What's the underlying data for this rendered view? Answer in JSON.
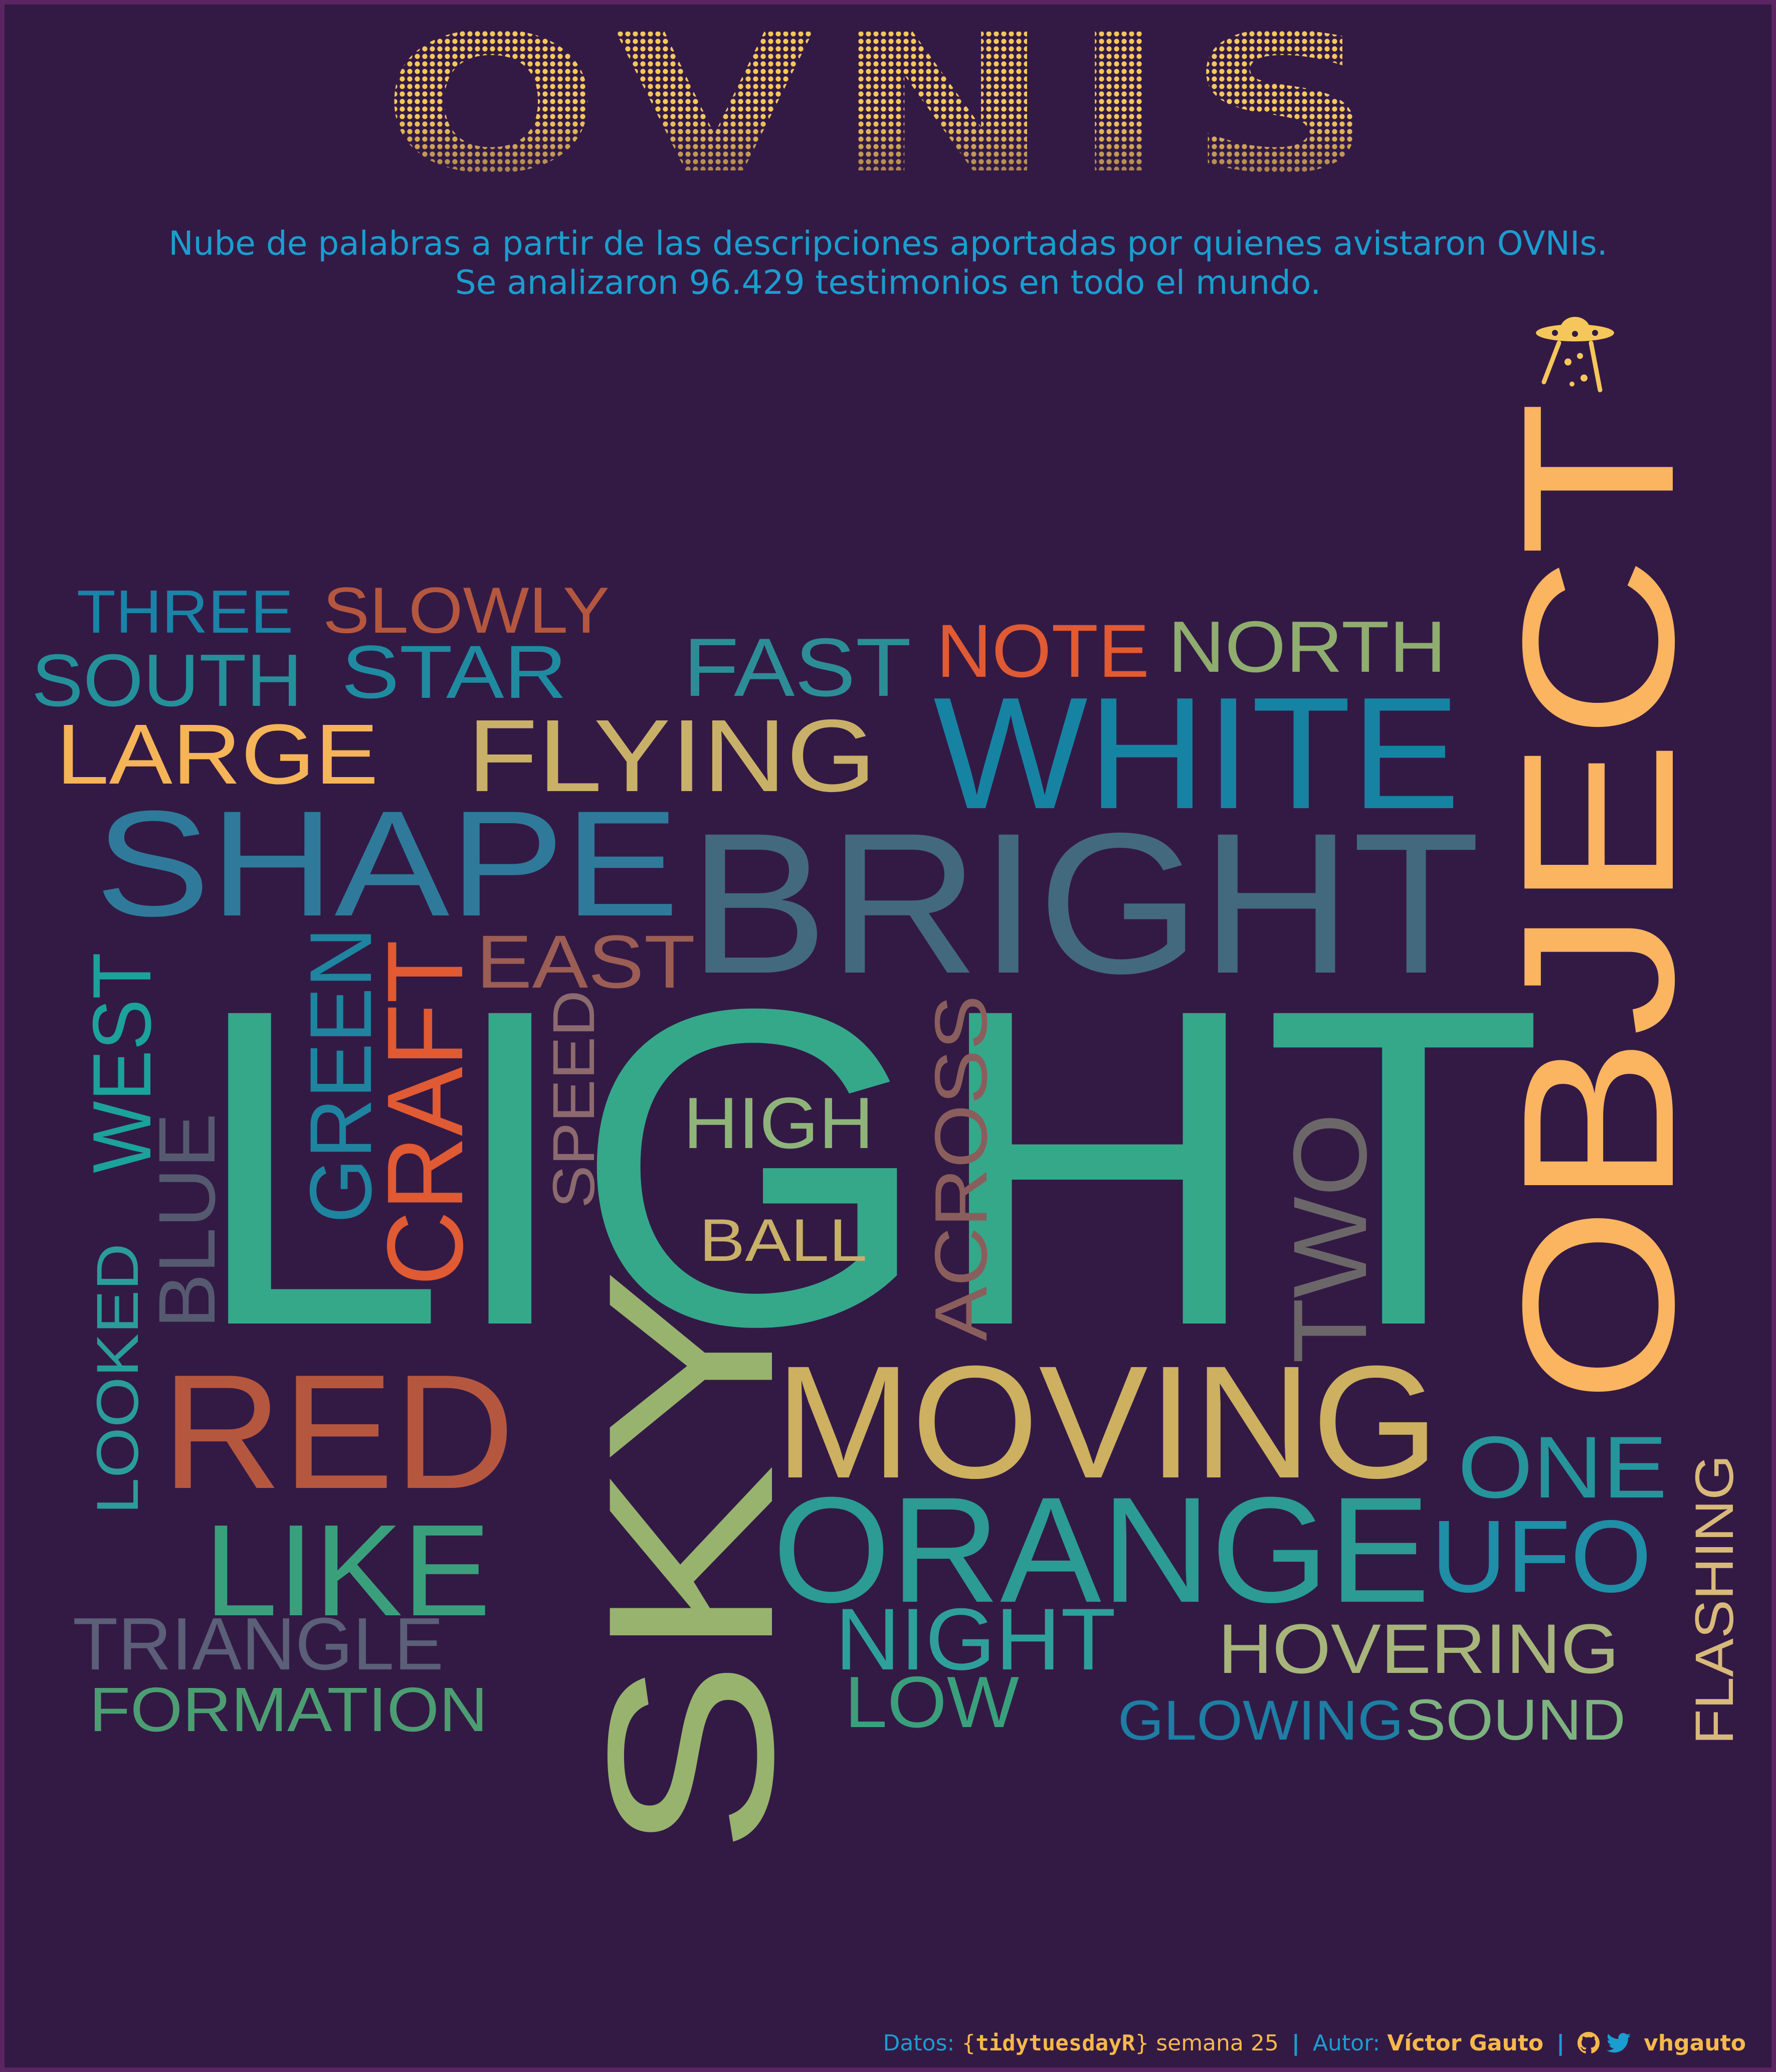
{
  "title": "OVNIS",
  "subtitle": {
    "line1": "Nube de palabras a partir de las descripciones aportadas por quienes avistaron OVNIs.",
    "line2": "Se analizaron 96.429 testimonios en todo el mundo."
  },
  "icons": {
    "ufo": "ufo-icon",
    "github": "github-icon",
    "twitter": "twitter-icon"
  },
  "colors": {
    "background": "#331a45",
    "accent_yellow": "#f5b94a",
    "accent_blue": "#1a9ed0"
  },
  "words": [
    "LIGHT",
    "OBJECT",
    "SKY",
    "BRIGHT",
    "WHITE",
    "SHAPE",
    "MOVING",
    "ORANGE",
    "RED",
    "LIKE",
    "FLYING",
    "CRAFT",
    "GREEN",
    "LARGE",
    "FAST",
    "NOTE",
    "NORTH",
    "SOUTH",
    "STAR",
    "THREE",
    "SLOWLY",
    "EAST",
    "SPEED",
    "HIGH",
    "BALL",
    "ACROSS",
    "TWO",
    "WEST",
    "BLUE",
    "LOOKED",
    "ONE",
    "UFO",
    "FLASHING",
    "TRIANGLE",
    "FORMATION",
    "NIGHT",
    "LOW",
    "HOVERING",
    "GLOWING",
    "SOUND"
  ],
  "footer": {
    "datos_label": "Datos:",
    "brace_open": "{",
    "package": "tidytuesdayR",
    "brace_close": "}",
    "week": "semana 25",
    "separator": "|",
    "autor_label": "Autor:",
    "author": "Víctor Gauto",
    "handle": "vhgauto"
  }
}
